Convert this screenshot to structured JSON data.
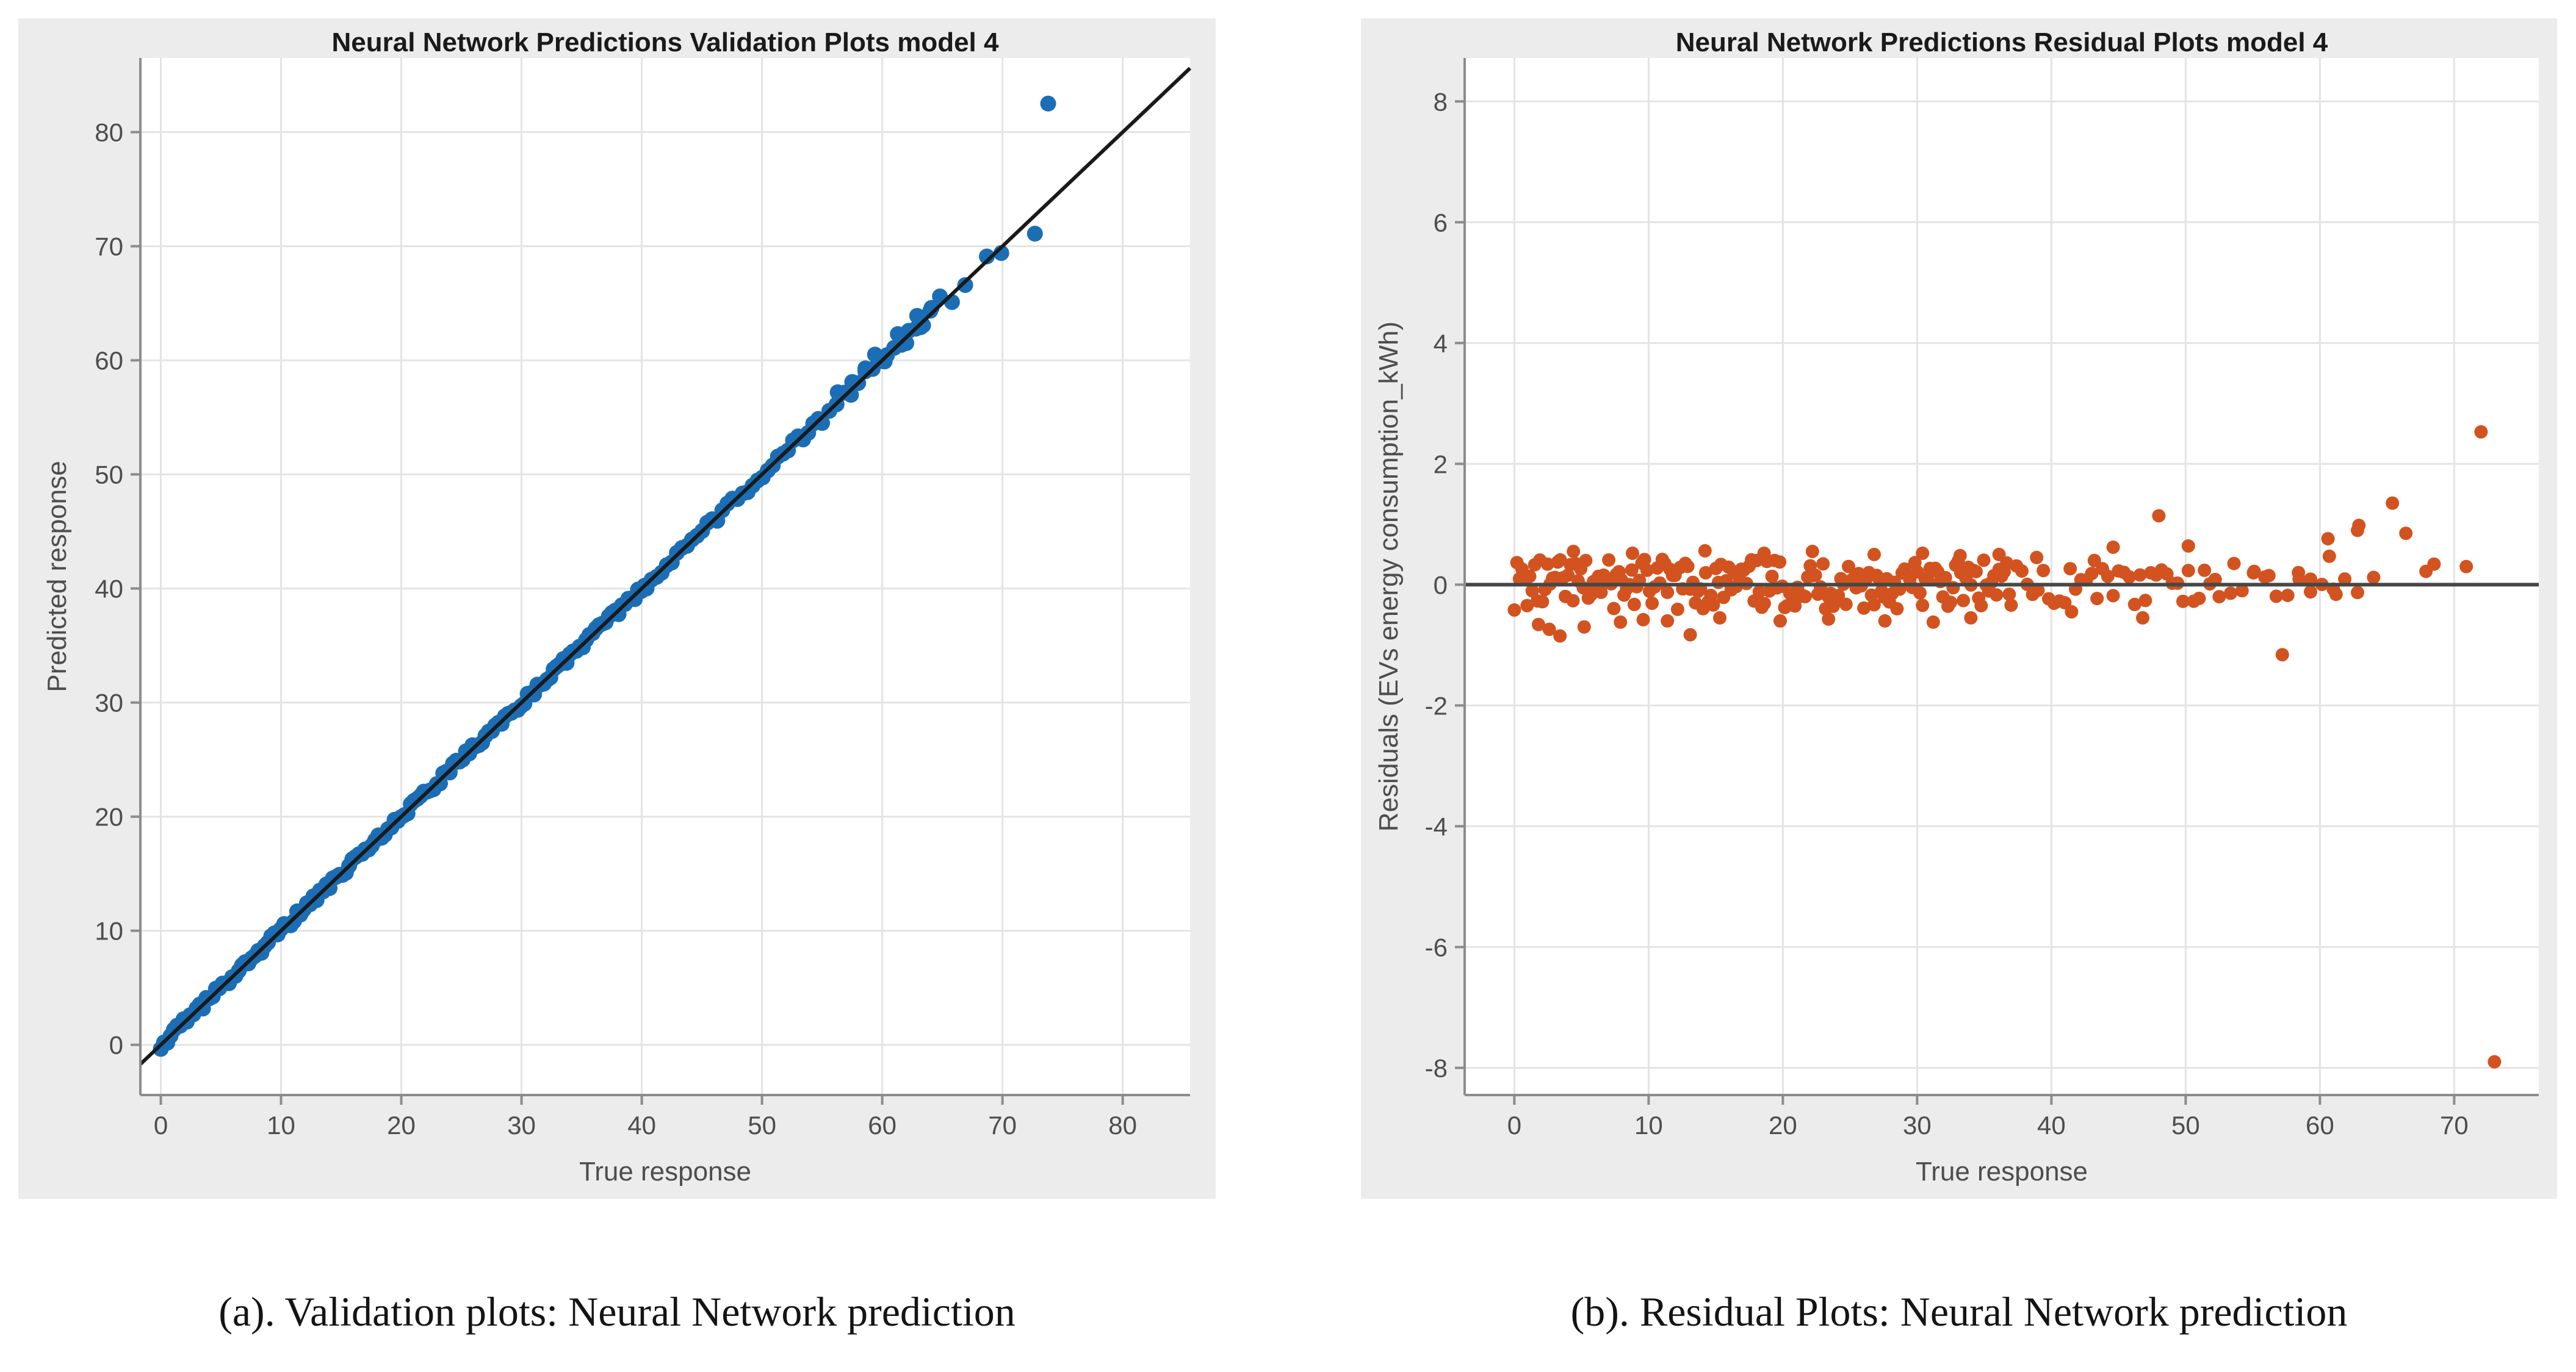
{
  "captions": {
    "a": "(a). Validation plots: Neural Network prediction",
    "b": "(b). Residual Plots: Neural Network prediction"
  },
  "chart_data": [
    {
      "type": "scatter",
      "title": "Neural Network Predictions Validation Plots model 4",
      "xlabel": "True response",
      "ylabel": "Predicted response",
      "xlim": [
        -1.7,
        85.6
      ],
      "ylim": [
        -4.4,
        86.5
      ],
      "xticks": [
        0,
        10,
        20,
        30,
        40,
        50,
        60,
        70,
        80
      ],
      "yticks": [
        0,
        10,
        20,
        30,
        40,
        50,
        60,
        70,
        80
      ],
      "grid": true,
      "figure_background": "#ececec",
      "plot_background": "#ffffff",
      "grid_color": "#e4e4e4",
      "axis_color": "#8c8c8c",
      "tick_label_color": "#4d4d4d",
      "marker_color": "#1b6eb5",
      "marker_radius": 13,
      "y_mode": "identity",
      "ref_line": {
        "type": "identity",
        "color": "#1a1a1a",
        "width": 6
      },
      "bands": [
        {
          "from": 0,
          "to": 40.4,
          "step": 0.27,
          "spread": 0.36,
          "seed": 5,
          "note": "dense unresolvable cloud of points on the y=x line, true response 0-40"
        },
        {
          "from": 40.4,
          "to": 55,
          "step": 0.42,
          "spread": 0.4,
          "seed": 17,
          "note": "medium-density cloud on the y=x line, 40-55"
        },
        {
          "from": 55,
          "to": 64.5,
          "step": 0.6,
          "spread": 0.5,
          "seed": 29,
          "note": "sparser chain of points on the y=x line, 55-64.5"
        }
      ],
      "points": [
        [
          56.3,
          57.2
        ],
        [
          57.5,
          58.1
        ],
        [
          58.6,
          59.3
        ],
        [
          59.4,
          60.5
        ],
        [
          60.2,
          59.9
        ],
        [
          61.3,
          62.3
        ],
        [
          62.0,
          61.5
        ],
        [
          62.9,
          63.9
        ],
        [
          63.2,
          62.9
        ],
        [
          64.1,
          64.6
        ],
        [
          64.8,
          65.6
        ],
        [
          65.8,
          65.1
        ],
        [
          66.9,
          66.6
        ],
        [
          68.7,
          69.1
        ],
        [
          69.9,
          69.4
        ],
        [
          72.7,
          71.1
        ],
        [
          73.8,
          82.5
        ]
      ]
    },
    {
      "type": "scatter",
      "title": "Neural Network Predictions Residual Plots model 4",
      "xlabel": "True response",
      "ylabel": "Residuals (EVs energy consumption_kWh)",
      "xlim": [
        -3.7,
        76.3
      ],
      "ylim": [
        -8.45,
        8.72
      ],
      "xticks": [
        0,
        10,
        20,
        30,
        40,
        50,
        60,
        70
      ],
      "yticks": [
        -8,
        -6,
        -4,
        -2,
        0,
        2,
        4,
        6,
        8
      ],
      "grid": true,
      "figure_background": "#ececec",
      "plot_background": "#ffffff",
      "grid_color": "#e4e4e4",
      "axis_color": "#8c8c8c",
      "tick_label_color": "#4d4d4d",
      "marker_color": "#d2531f",
      "marker_radius": 11,
      "y_mode": "residual",
      "ref_line": {
        "type": "zero",
        "color": "#474747",
        "width": 6
      },
      "bands": [
        {
          "from": 0,
          "to": 37,
          "step": 0.19,
          "spread": 0.42,
          "seed": 11,
          "note": "dense residual band within about +/-0.45 kWh, true response 0-37"
        },
        {
          "from": 37,
          "to": 52.5,
          "step": 0.4,
          "spread": 0.34,
          "seed": 23,
          "note": "medium-density residual band, 37-52.5"
        },
        {
          "from": 52.5,
          "to": 62.5,
          "step": 0.85,
          "spread": 0.2,
          "seed": 37,
          "note": "sparse residuals close to zero, 52.5-62.5"
        }
      ],
      "points": [
        [
          1.8,
          -0.66
        ],
        [
          2.6,
          -0.74
        ],
        [
          3.4,
          -0.85
        ],
        [
          5.2,
          -0.7
        ],
        [
          7.9,
          -0.62
        ],
        [
          9.6,
          -0.58
        ],
        [
          11.4,
          -0.6
        ],
        [
          13.1,
          -0.83
        ],
        [
          15.3,
          -0.55
        ],
        [
          19.8,
          -0.6
        ],
        [
          23.4,
          -0.57
        ],
        [
          27.6,
          -0.6
        ],
        [
          31.2,
          -0.62
        ],
        [
          34.0,
          -0.55
        ],
        [
          4.4,
          0.55
        ],
        [
          8.8,
          0.52
        ],
        [
          14.2,
          0.56
        ],
        [
          18.6,
          0.52
        ],
        [
          22.2,
          0.55
        ],
        [
          26.8,
          0.5
        ],
        [
          30.4,
          0.52
        ],
        [
          33.2,
          0.48
        ],
        [
          36.1,
          0.5
        ],
        [
          38.9,
          0.45
        ],
        [
          41.5,
          -0.45
        ],
        [
          43.2,
          0.4
        ],
        [
          44.6,
          0.62
        ],
        [
          46.8,
          -0.55
        ],
        [
          48.0,
          1.14
        ],
        [
          50.2,
          0.64
        ],
        [
          53.6,
          0.35
        ],
        [
          55.1,
          0.22
        ],
        [
          56.2,
          0.15
        ],
        [
          57.2,
          -1.16
        ],
        [
          58.4,
          0.2
        ],
        [
          59.3,
          -0.12
        ],
        [
          60.6,
          0.76
        ],
        [
          60.7,
          0.47
        ],
        [
          61.2,
          -0.16
        ],
        [
          62.8,
          0.9
        ],
        [
          62.8,
          -0.13
        ],
        [
          62.9,
          0.98
        ],
        [
          64.0,
          0.12
        ],
        [
          65.4,
          1.35
        ],
        [
          66.4,
          0.85
        ],
        [
          67.9,
          0.22
        ],
        [
          68.5,
          0.34
        ],
        [
          70.9,
          0.3
        ],
        [
          72.0,
          2.53
        ],
        [
          73.0,
          -7.9
        ]
      ]
    }
  ]
}
